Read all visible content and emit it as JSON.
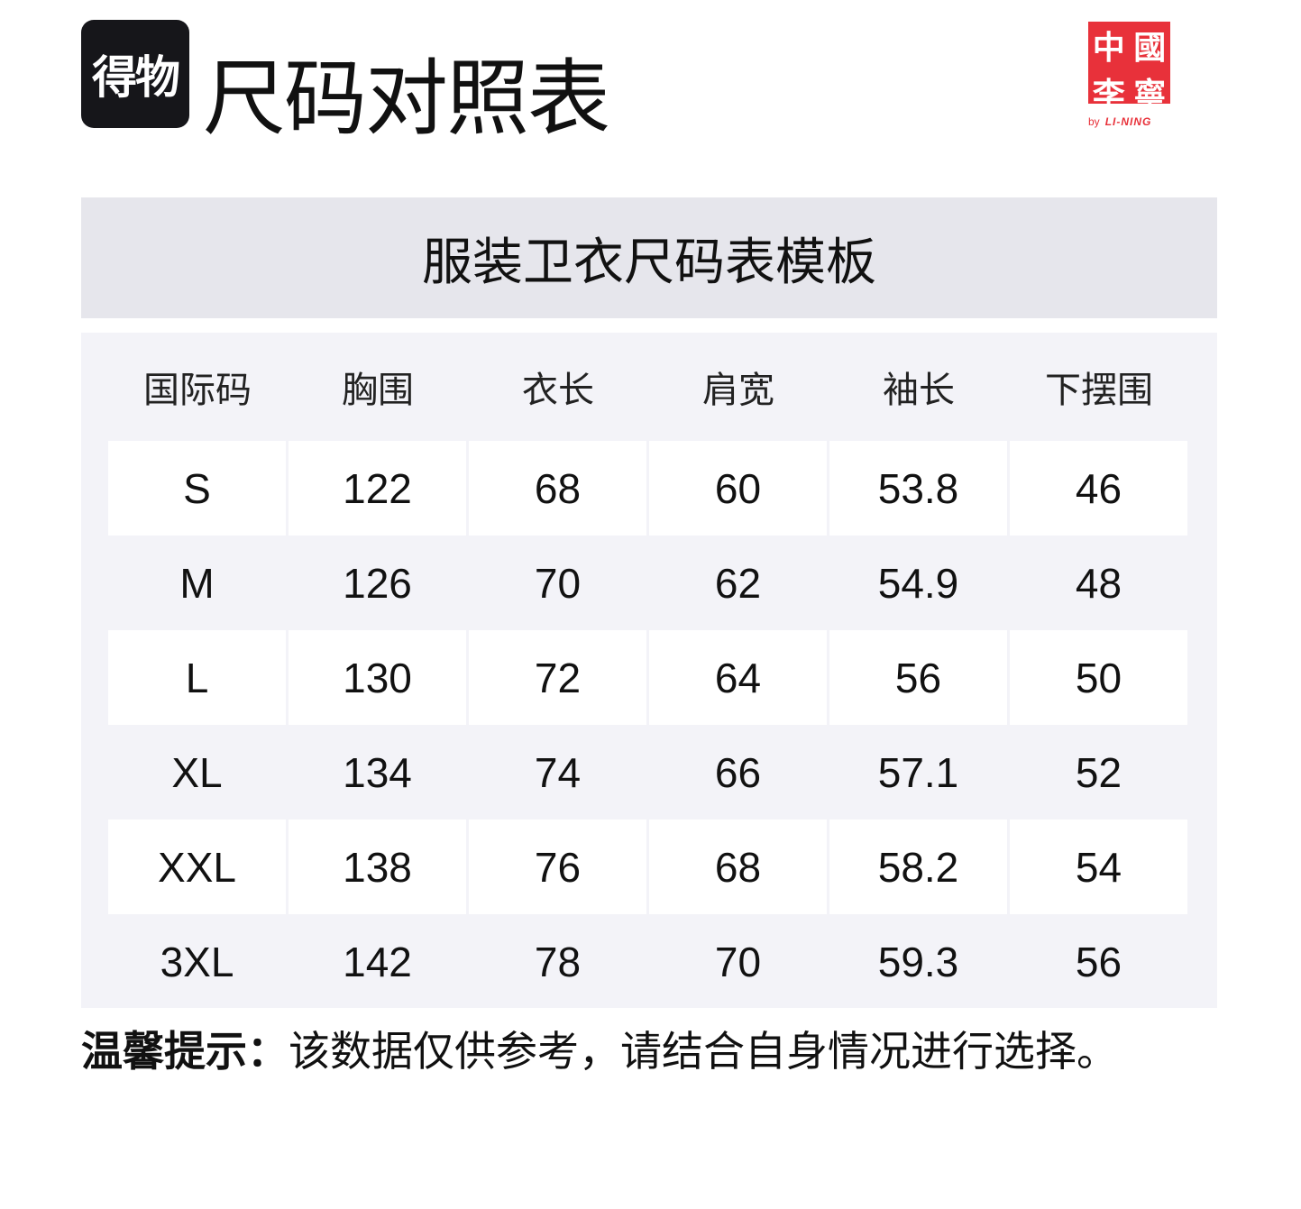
{
  "header": {
    "app_logo_text": "得物",
    "title": "尺码对照表",
    "brand_logo_chars": [
      "中",
      "國",
      "李",
      "寧"
    ],
    "brand_by": "by",
    "brand_name": "LI-NING",
    "brand_color": "#e8313a"
  },
  "subtitle": "服装卫衣尺码表模板",
  "table": {
    "columns": [
      "国际码",
      "胸围",
      "衣长",
      "肩宽",
      "袖长",
      "下摆围"
    ],
    "rows": [
      [
        "S",
        "122",
        "68",
        "60",
        "53.8",
        "46"
      ],
      [
        "M",
        "126",
        "70",
        "62",
        "54.9",
        "48"
      ],
      [
        "L",
        "130",
        "72",
        "64",
        "56",
        "50"
      ],
      [
        "XL",
        "134",
        "74",
        "66",
        "57.1",
        "52"
      ],
      [
        "XXL",
        "138",
        "76",
        "68",
        "58.2",
        "54"
      ],
      [
        "3XL",
        "142",
        "78",
        "70",
        "59.3",
        "56"
      ]
    ]
  },
  "note": {
    "label": "温馨提示：",
    "text": "该数据仅供参考，请结合自身情况进行选择。"
  }
}
